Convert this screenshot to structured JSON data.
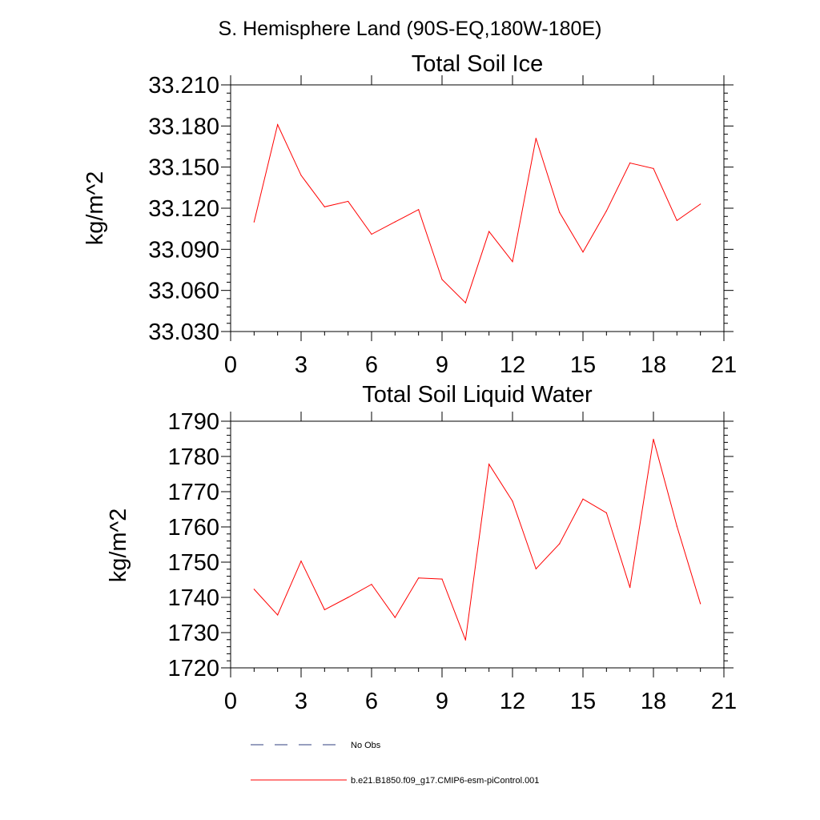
{
  "figure_title": "S. Hemisphere Land (90S-EQ,180W-180E)",
  "colors": {
    "model_line": "#ff0000",
    "obs_line": "#2f3f7f",
    "axis": "#000000"
  },
  "legend": {
    "placement": "bottom-left",
    "entries": [
      {
        "label": "No Obs",
        "style": "dashed",
        "color": "#2f3f7f"
      },
      {
        "label": "b.e21.B1850.f09_g17.CMIP6-esm-piControl.001",
        "style": "solid",
        "color": "#ff0000"
      }
    ]
  },
  "chart_data": [
    {
      "type": "line",
      "title": "Total Soil Ice",
      "ylabel": "kg/m^2",
      "xlabel": "",
      "xlim": [
        0,
        21
      ],
      "ylim": [
        33.03,
        33.21
      ],
      "xticks": [
        0,
        3,
        6,
        9,
        12,
        15,
        18,
        21
      ],
      "xticklabels": [
        "0",
        "3",
        "6",
        "9",
        "12",
        "15",
        "18",
        "21"
      ],
      "yticks": [
        33.03,
        33.06,
        33.09,
        33.12,
        33.15,
        33.18,
        33.21
      ],
      "yticklabels": [
        "33.030",
        "33.060",
        "33.090",
        "33.120",
        "33.150",
        "33.180",
        "33.210"
      ],
      "grid": false,
      "series": [
        {
          "name": "b.e21.B1850.f09_g17.CMIP6-esm-piControl.001",
          "color": "#ff0000",
          "x": [
            1,
            2,
            3,
            4,
            5,
            6,
            7,
            8,
            9,
            10,
            11,
            12,
            13,
            14,
            15,
            16,
            17,
            18,
            19,
            20
          ],
          "values": [
            33.11,
            33.181,
            33.144,
            33.121,
            33.125,
            33.101,
            33.11,
            33.119,
            33.068,
            33.051,
            33.103,
            33.081,
            33.171,
            33.117,
            33.088,
            33.118,
            33.153,
            33.149,
            33.111,
            33.123
          ]
        }
      ]
    },
    {
      "type": "line",
      "title": "Total Soil Liquid Water",
      "ylabel": "kg/m^2",
      "xlabel": "",
      "xlim": [
        0,
        21
      ],
      "ylim": [
        1720,
        1790
      ],
      "xticks": [
        0,
        3,
        6,
        9,
        12,
        15,
        18,
        21
      ],
      "xticklabels": [
        "0",
        "3",
        "6",
        "9",
        "12",
        "15",
        "18",
        "21"
      ],
      "yticks": [
        1720,
        1730,
        1740,
        1750,
        1760,
        1770,
        1780,
        1790
      ],
      "yticklabels": [
        "1720",
        "1730",
        "1740",
        "1750",
        "1760",
        "1770",
        "1780",
        "1790"
      ],
      "grid": false,
      "series": [
        {
          "name": "b.e21.B1850.f09_g17.CMIP6-esm-piControl.001",
          "color": "#ff0000",
          "x": [
            1,
            2,
            3,
            4,
            5,
            6,
            7,
            8,
            9,
            10,
            11,
            12,
            13,
            14,
            15,
            16,
            17,
            18,
            19,
            20
          ],
          "values": [
            1742.3,
            1735.0,
            1750.3,
            1736.5,
            1740.0,
            1743.7,
            1734.3,
            1745.5,
            1745.2,
            1727.9,
            1777.8,
            1767.3,
            1748.1,
            1755.2,
            1767.9,
            1764.0,
            1742.8,
            1784.9,
            1760.2,
            1738.2
          ]
        }
      ]
    }
  ]
}
